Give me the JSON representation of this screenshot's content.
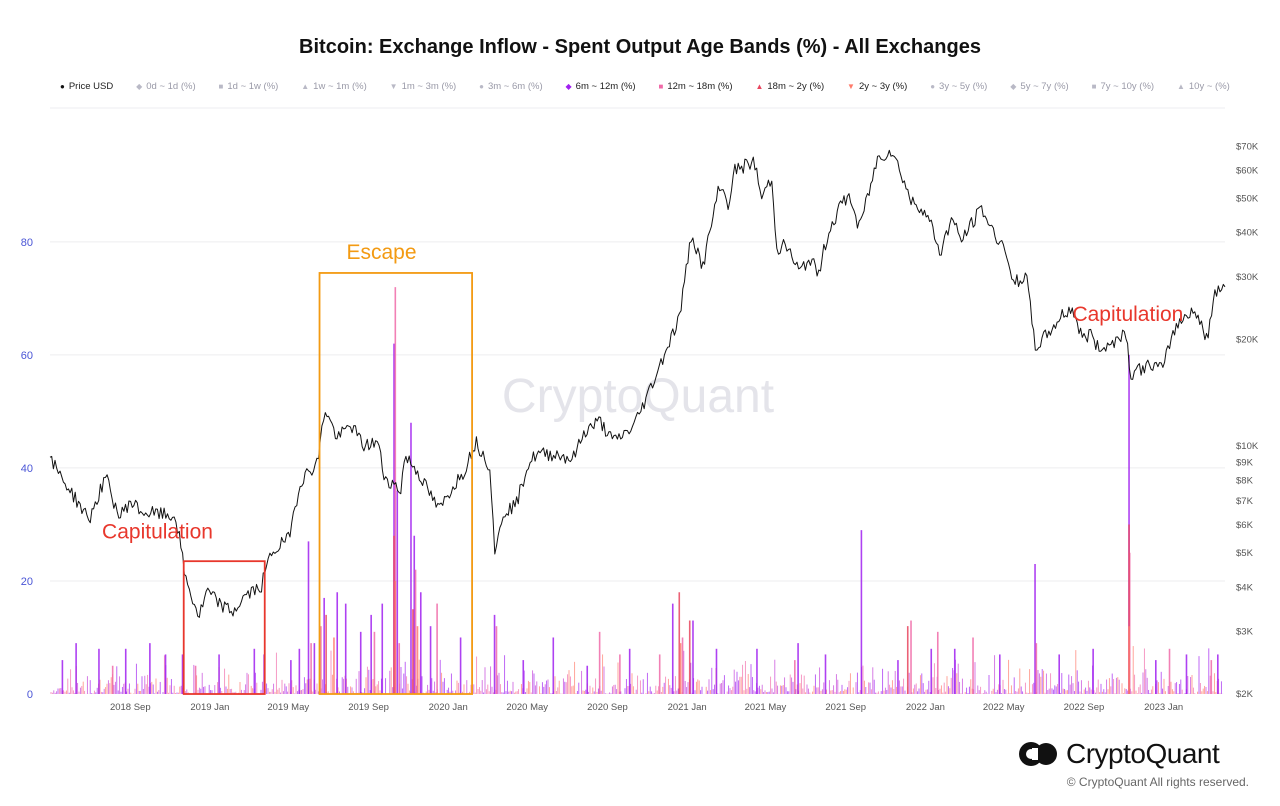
{
  "title": "Bitcoin: Exchange Inflow - Spent Output Age Bands (%) - All Exchanges",
  "watermark": "CryptoQuant",
  "brand": {
    "name": "CryptoQuant",
    "copyright": "© CryptoQuant All rights reserved."
  },
  "legend": [
    {
      "symbol": "●",
      "label": "Price USD",
      "color": "#111111",
      "active": true
    },
    {
      "symbol": "◆",
      "label": "0d ~ 1d (%)",
      "color": "#b9b9c6",
      "active": false
    },
    {
      "symbol": "■",
      "label": "1d ~ 1w (%)",
      "color": "#b9b9c6",
      "active": false
    },
    {
      "symbol": "▲",
      "label": "1w ~ 1m (%)",
      "color": "#b9b9c6",
      "active": false
    },
    {
      "symbol": "▼",
      "label": "1m ~ 3m (%)",
      "color": "#b9b9c6",
      "active": false
    },
    {
      "symbol": "●",
      "label": "3m ~ 6m (%)",
      "color": "#b9b9c6",
      "active": false
    },
    {
      "symbol": "◆",
      "label": "6m ~ 12m (%)",
      "color": "#a020f0",
      "active": true
    },
    {
      "symbol": "■",
      "label": "12m ~ 18m (%)",
      "color": "#f06aa8",
      "active": true
    },
    {
      "symbol": "▲",
      "label": "18m ~ 2y (%)",
      "color": "#e8455e",
      "active": true
    },
    {
      "symbol": "▼",
      "label": "2y ~ 3y (%)",
      "color": "#ff7b6b",
      "active": true
    },
    {
      "symbol": "●",
      "label": "3y ~ 5y (%)",
      "color": "#b9b9c6",
      "active": false
    },
    {
      "symbol": "◆",
      "label": "5y ~ 7y (%)",
      "color": "#b9b9c6",
      "active": false
    },
    {
      "symbol": "■",
      "label": "7y ~ 10y (%)",
      "color": "#b9b9c6",
      "active": false
    },
    {
      "symbol": "▲",
      "label": "10y ~ (%)",
      "color": "#b9b9c6",
      "active": false
    }
  ],
  "annotations": [
    {
      "text": "Capitulation",
      "color": "#e8372c",
      "date": "2018.78",
      "pct": 27.5
    },
    {
      "text": "Escape",
      "color": "#f39a12",
      "date": "2019.72",
      "pct": 77.0
    },
    {
      "text": "Capitulation",
      "color": "#e8372c",
      "date": "2022.85",
      "pct": 66.0
    }
  ],
  "boxes": [
    {
      "color": "#e8372c",
      "x0": "2018.89",
      "x1": "2019.23",
      "y0": 0,
      "y1": 23.5
    },
    {
      "color": "#f39a12",
      "x0": "2019.46",
      "x1": "2020.10",
      "y0": 0,
      "y1": 74.5
    }
  ],
  "chart_data": {
    "type": "line",
    "x_range": [
      "2018-05-01",
      "2023-04-05"
    ],
    "x_ticks": [
      {
        "date": "2018-09-01",
        "label": "2018 Sep"
      },
      {
        "date": "2019-01-01",
        "label": "2019 Jan"
      },
      {
        "date": "2019-05-01",
        "label": "2019 May"
      },
      {
        "date": "2019-09-01",
        "label": "2019 Sep"
      },
      {
        "date": "2020-01-01",
        "label": "2020 Jan"
      },
      {
        "date": "2020-05-01",
        "label": "2020 May"
      },
      {
        "date": "2020-09-01",
        "label": "2020 Sep"
      },
      {
        "date": "2021-01-01",
        "label": "2021 Jan"
      },
      {
        "date": "2021-05-01",
        "label": "2021 May"
      },
      {
        "date": "2021-09-01",
        "label": "2021 Sep"
      },
      {
        "date": "2022-01-01",
        "label": "2022 Jan"
      },
      {
        "date": "2022-05-01",
        "label": "2022 May"
      },
      {
        "date": "2022-09-01",
        "label": "2022 Sep"
      },
      {
        "date": "2023-01-01",
        "label": "2023 Jan"
      }
    ],
    "y_left": {
      "label": "",
      "range": [
        0,
        100
      ],
      "ticks": [
        0,
        20,
        40,
        60,
        80
      ]
    },
    "y_right": {
      "label": "",
      "scale": "log",
      "range": [
        2000,
        80000
      ],
      "ticks": [
        {
          "v": 2000,
          "label": "$2K"
        },
        {
          "v": 3000,
          "label": "$3K"
        },
        {
          "v": 4000,
          "label": "$4K"
        },
        {
          "v": 5000,
          "label": "$5K"
        },
        {
          "v": 6000,
          "label": "$6K"
        },
        {
          "v": 7000,
          "label": "$7K"
        },
        {
          "v": 8000,
          "label": "$8K"
        },
        {
          "v": 9000,
          "label": "$9K"
        },
        {
          "v": 10000,
          "label": "$10K"
        },
        {
          "v": 20000,
          "label": "$20K"
        },
        {
          "v": 30000,
          "label": "$30K"
        },
        {
          "v": 40000,
          "label": "$40K"
        },
        {
          "v": 50000,
          "label": "$50K"
        },
        {
          "v": 60000,
          "label": "$60K"
        },
        {
          "v": 70000,
          "label": "$70K"
        }
      ]
    },
    "price_series": {
      "name": "Price USD",
      "axis": "right",
      "color": "#111111",
      "points": [
        [
          "2018-05-01",
          9200
        ],
        [
          "2018-06-01",
          7500
        ],
        [
          "2018-06-30",
          6200
        ],
        [
          "2018-07-25",
          8200
        ],
        [
          "2018-08-15",
          6300
        ],
        [
          "2018-09-01",
          7000
        ],
        [
          "2018-09-20",
          6500
        ],
        [
          "2018-10-15",
          6450
        ],
        [
          "2018-11-10",
          6300
        ],
        [
          "2018-11-25",
          4200
        ],
        [
          "2018-12-15",
          3300
        ],
        [
          "2018-12-28",
          3900
        ],
        [
          "2019-01-15",
          3600
        ],
        [
          "2019-02-05",
          3400
        ],
        [
          "2019-02-25",
          3800
        ],
        [
          "2019-03-20",
          4000
        ],
        [
          "2019-04-05",
          5000
        ],
        [
          "2019-05-01",
          5500
        ],
        [
          "2019-05-20",
          8000
        ],
        [
          "2019-06-15",
          9000
        ],
        [
          "2019-06-26",
          12800
        ],
        [
          "2019-07-15",
          10500
        ],
        [
          "2019-08-05",
          11500
        ],
        [
          "2019-08-25",
          10000
        ],
        [
          "2019-09-15",
          10300
        ],
        [
          "2019-09-25",
          8200
        ],
        [
          "2019-10-20",
          7500
        ],
        [
          "2019-10-27",
          9400
        ],
        [
          "2019-11-15",
          8500
        ],
        [
          "2019-12-01",
          7500
        ],
        [
          "2019-12-18",
          6600
        ],
        [
          "2020-01-10",
          7800
        ],
        [
          "2020-01-25",
          8500
        ],
        [
          "2020-02-12",
          10300
        ],
        [
          "2020-03-05",
          8800
        ],
        [
          "2020-03-13",
          4900
        ],
        [
          "2020-03-25",
          6500
        ],
        [
          "2020-04-15",
          6900
        ],
        [
          "2020-05-01",
          8800
        ],
        [
          "2020-05-15",
          9500
        ],
        [
          "2020-06-15",
          9500
        ],
        [
          "2020-07-10",
          9200
        ],
        [
          "2020-07-28",
          11000
        ],
        [
          "2020-08-20",
          11800
        ],
        [
          "2020-09-10",
          10300
        ],
        [
          "2020-10-10",
          11300
        ],
        [
          "2020-10-25",
          13000
        ],
        [
          "2020-11-15",
          16000
        ],
        [
          "2020-12-01",
          19000
        ],
        [
          "2020-12-20",
          23000
        ],
        [
          "2021-01-08",
          40000
        ],
        [
          "2021-01-25",
          32000
        ],
        [
          "2021-02-20",
          55000
        ],
        [
          "2021-03-05",
          48000
        ],
        [
          "2021-03-15",
          60000
        ],
        [
          "2021-04-14",
          63500
        ],
        [
          "2021-04-25",
          50000
        ],
        [
          "2021-05-10",
          57000
        ],
        [
          "2021-05-19",
          36000
        ],
        [
          "2021-06-01",
          37000
        ],
        [
          "2021-06-22",
          31000
        ],
        [
          "2021-07-10",
          34000
        ],
        [
          "2021-07-20",
          30000
        ],
        [
          "2021-08-05",
          40000
        ],
        [
          "2021-08-25",
          48000
        ],
        [
          "2021-09-07",
          51000
        ],
        [
          "2021-09-21",
          41000
        ],
        [
          "2021-10-10",
          55000
        ],
        [
          "2021-10-20",
          65000
        ],
        [
          "2021-11-10",
          68500
        ],
        [
          "2021-11-28",
          57000
        ],
        [
          "2021-12-10",
          49000
        ],
        [
          "2021-12-28",
          47000
        ],
        [
          "2022-01-10",
          42000
        ],
        [
          "2022-01-24",
          35000
        ],
        [
          "2022-02-10",
          44000
        ],
        [
          "2022-02-25",
          38000
        ],
        [
          "2022-03-28",
          47000
        ],
        [
          "2022-04-15",
          40000
        ],
        [
          "2022-05-05",
          36000
        ],
        [
          "2022-05-12",
          29000
        ],
        [
          "2022-06-05",
          30000
        ],
        [
          "2022-06-18",
          19000
        ],
        [
          "2022-07-10",
          21000
        ],
        [
          "2022-07-30",
          23500
        ],
        [
          "2022-08-14",
          24500
        ],
        [
          "2022-08-30",
          20000
        ],
        [
          "2022-09-13",
          21000
        ],
        [
          "2022-09-20",
          19000
        ],
        [
          "2022-10-10",
          19200
        ],
        [
          "2022-10-25",
          20500
        ],
        [
          "2022-11-05",
          21000
        ],
        [
          "2022-11-10",
          16000
        ],
        [
          "2022-11-25",
          16500
        ],
        [
          "2022-12-15",
          17000
        ],
        [
          "2022-12-31",
          16500
        ],
        [
          "2023-01-15",
          21000
        ],
        [
          "2023-01-31",
          23000
        ],
        [
          "2023-02-15",
          24500
        ],
        [
          "2023-03-10",
          20000
        ],
        [
          "2023-03-20",
          27500
        ],
        [
          "2023-04-05",
          28500
        ]
      ]
    },
    "spike_series": [
      {
        "name": "6m ~ 12m (%)",
        "axis": "left",
        "color": "#a020f0",
        "spikes": [
          [
            "2018-05-20",
            6
          ],
          [
            "2018-06-10",
            9
          ],
          [
            "2018-07-15",
            8
          ],
          [
            "2018-08-25",
            8
          ],
          [
            "2018-10-01",
            9
          ],
          [
            "2018-10-25",
            7
          ],
          [
            "2018-11-20",
            7
          ],
          [
            "2019-01-15",
            7
          ],
          [
            "2019-03-10",
            8
          ],
          [
            "2019-03-25",
            7
          ],
          [
            "2019-05-05",
            6
          ],
          [
            "2019-05-18",
            8
          ],
          [
            "2019-06-01",
            27
          ],
          [
            "2019-06-10",
            9
          ],
          [
            "2019-06-25",
            17
          ],
          [
            "2019-07-15",
            18
          ],
          [
            "2019-07-28",
            16
          ],
          [
            "2019-08-20",
            11
          ],
          [
            "2019-09-05",
            14
          ],
          [
            "2019-09-22",
            16
          ],
          [
            "2019-10-10",
            62
          ],
          [
            "2019-10-15",
            36
          ],
          [
            "2019-11-05",
            48
          ],
          [
            "2019-11-10",
            28
          ],
          [
            "2019-11-20",
            18
          ],
          [
            "2019-12-05",
            12
          ],
          [
            "2020-01-20",
            10
          ],
          [
            "2020-03-12",
            14
          ],
          [
            "2020-04-25",
            6
          ],
          [
            "2020-06-10",
            10
          ],
          [
            "2020-08-01",
            5
          ],
          [
            "2020-10-05",
            8
          ],
          [
            "2020-12-10",
            16
          ],
          [
            "2021-01-10",
            13
          ],
          [
            "2021-02-15",
            8
          ],
          [
            "2021-04-18",
            8
          ],
          [
            "2021-06-20",
            9
          ],
          [
            "2021-08-01",
            7
          ],
          [
            "2021-09-25",
            29
          ],
          [
            "2021-11-20",
            6
          ],
          [
            "2022-01-10",
            8
          ],
          [
            "2022-02-15",
            8
          ],
          [
            "2022-04-25",
            7
          ],
          [
            "2022-06-18",
            23
          ],
          [
            "2022-07-25",
            7
          ],
          [
            "2022-09-15",
            8
          ],
          [
            "2022-11-09",
            60
          ],
          [
            "2022-12-20",
            6
          ],
          [
            "2023-02-05",
            7
          ],
          [
            "2023-03-25",
            7
          ]
        ]
      },
      {
        "name": "12m ~ 18m (%)",
        "axis": "left",
        "color": "#f06aa8",
        "spikes": [
          [
            "2018-08-05",
            5
          ],
          [
            "2018-12-10",
            5
          ],
          [
            "2019-06-05",
            9
          ],
          [
            "2019-06-20",
            12
          ],
          [
            "2019-09-10",
            11
          ],
          [
            "2019-10-12",
            72
          ],
          [
            "2019-10-18",
            9
          ],
          [
            "2019-11-12",
            22
          ],
          [
            "2019-12-15",
            16
          ],
          [
            "2020-03-15",
            12
          ],
          [
            "2020-08-20",
            11
          ],
          [
            "2020-09-20",
            7
          ],
          [
            "2020-11-20",
            7
          ],
          [
            "2020-12-25",
            10
          ],
          [
            "2021-06-15",
            6
          ],
          [
            "2021-12-10",
            13
          ],
          [
            "2022-01-20",
            11
          ],
          [
            "2022-03-15",
            10
          ],
          [
            "2022-06-20",
            9
          ],
          [
            "2022-11-10",
            25
          ],
          [
            "2023-01-10",
            8
          ],
          [
            "2023-03-15",
            6
          ]
        ]
      },
      {
        "name": "18m ~ 2y (%)",
        "axis": "left",
        "color": "#e8455e",
        "spikes": [
          [
            "2019-06-28",
            14
          ],
          [
            "2019-10-10",
            28
          ],
          [
            "2019-11-08",
            15
          ],
          [
            "2020-12-20",
            18
          ],
          [
            "2021-01-05",
            13
          ],
          [
            "2021-12-05",
            12
          ],
          [
            "2022-11-09",
            30
          ]
        ]
      },
      {
        "name": "2y ~ 3y (%)",
        "axis": "left",
        "color": "#ff7b6b",
        "spikes": [
          [
            "2019-07-10",
            10
          ],
          [
            "2019-10-12",
            20
          ],
          [
            "2019-11-15",
            12
          ],
          [
            "2020-12-22",
            9
          ],
          [
            "2022-11-09",
            12
          ]
        ]
      }
    ]
  }
}
